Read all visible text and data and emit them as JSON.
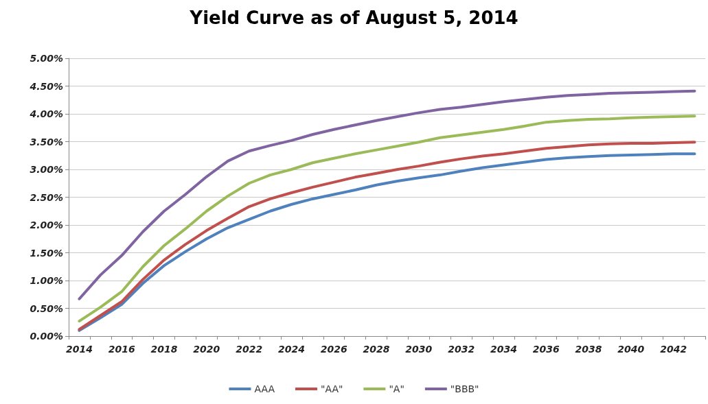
{
  "chart_data": {
    "type": "line",
    "title": "Yield Curve as of August 5, 2014",
    "categories": [
      "2014",
      null,
      "2016",
      null,
      "2018",
      null,
      "2020",
      null,
      "2022",
      null,
      "2024",
      null,
      "2026",
      null,
      "2028",
      null,
      "2030",
      null,
      "2032",
      null,
      "2034",
      null,
      "2036",
      null,
      "2038",
      null,
      "2040",
      null,
      "2042",
      null
    ],
    "series": [
      {
        "name": "AAA",
        "color": "#4f81bd",
        "values": [
          0.1,
          0.33,
          0.57,
          0.95,
          1.27,
          1.52,
          1.75,
          1.95,
          2.1,
          2.25,
          2.37,
          2.47,
          2.55,
          2.63,
          2.72,
          2.79,
          2.85,
          2.9,
          2.97,
          3.03,
          3.08,
          3.13,
          3.18,
          3.21,
          3.23,
          3.25,
          3.26,
          3.27,
          3.28,
          3.28
        ]
      },
      {
        "name": "\"AA\"",
        "color": "#c0504d",
        "values": [
          0.12,
          0.37,
          0.62,
          1.02,
          1.37,
          1.65,
          1.9,
          2.12,
          2.33,
          2.47,
          2.58,
          2.68,
          2.77,
          2.86,
          2.93,
          3.0,
          3.06,
          3.13,
          3.19,
          3.24,
          3.28,
          3.33,
          3.38,
          3.41,
          3.44,
          3.46,
          3.47,
          3.47,
          3.48,
          3.49
        ]
      },
      {
        "name": "\"A\"",
        "color": "#9bbb59",
        "values": [
          0.27,
          0.52,
          0.8,
          1.25,
          1.63,
          1.93,
          2.25,
          2.52,
          2.75,
          2.9,
          3.0,
          3.12,
          3.2,
          3.28,
          3.35,
          3.42,
          3.49,
          3.57,
          3.62,
          3.67,
          3.72,
          3.78,
          3.85,
          3.88,
          3.9,
          3.91,
          3.93,
          3.94,
          3.95,
          3.96
        ]
      },
      {
        "name": "\"BBB\"",
        "color": "#8064a2",
        "values": [
          0.67,
          1.1,
          1.45,
          1.88,
          2.25,
          2.55,
          2.87,
          3.15,
          3.33,
          3.43,
          3.52,
          3.63,
          3.72,
          3.8,
          3.88,
          3.95,
          4.02,
          4.08,
          4.12,
          4.17,
          4.22,
          4.26,
          4.3,
          4.33,
          4.35,
          4.37,
          4.38,
          4.39,
          4.4,
          4.41
        ]
      }
    ],
    "ylim": [
      0,
      5
    ],
    "yticks": [
      {
        "value": 0,
        "label": "0.00%"
      },
      {
        "value": 0.5,
        "label": "0.50%"
      },
      {
        "value": 1,
        "label": "1.00%"
      },
      {
        "value": 1.5,
        "label": "1.50%"
      },
      {
        "value": 2,
        "label": "2.00%"
      },
      {
        "value": 2.5,
        "label": "2.50%"
      },
      {
        "value": 3,
        "label": "3.00%"
      },
      {
        "value": 3.5,
        "label": "3.50%"
      },
      {
        "value": 4,
        "label": "4.00%"
      },
      {
        "value": 4.5,
        "label": "4.50%"
      },
      {
        "value": 5,
        "label": "5.00%"
      }
    ],
    "grid": "y",
    "legend": "bottom",
    "marker": "none",
    "line_style": "solid"
  }
}
